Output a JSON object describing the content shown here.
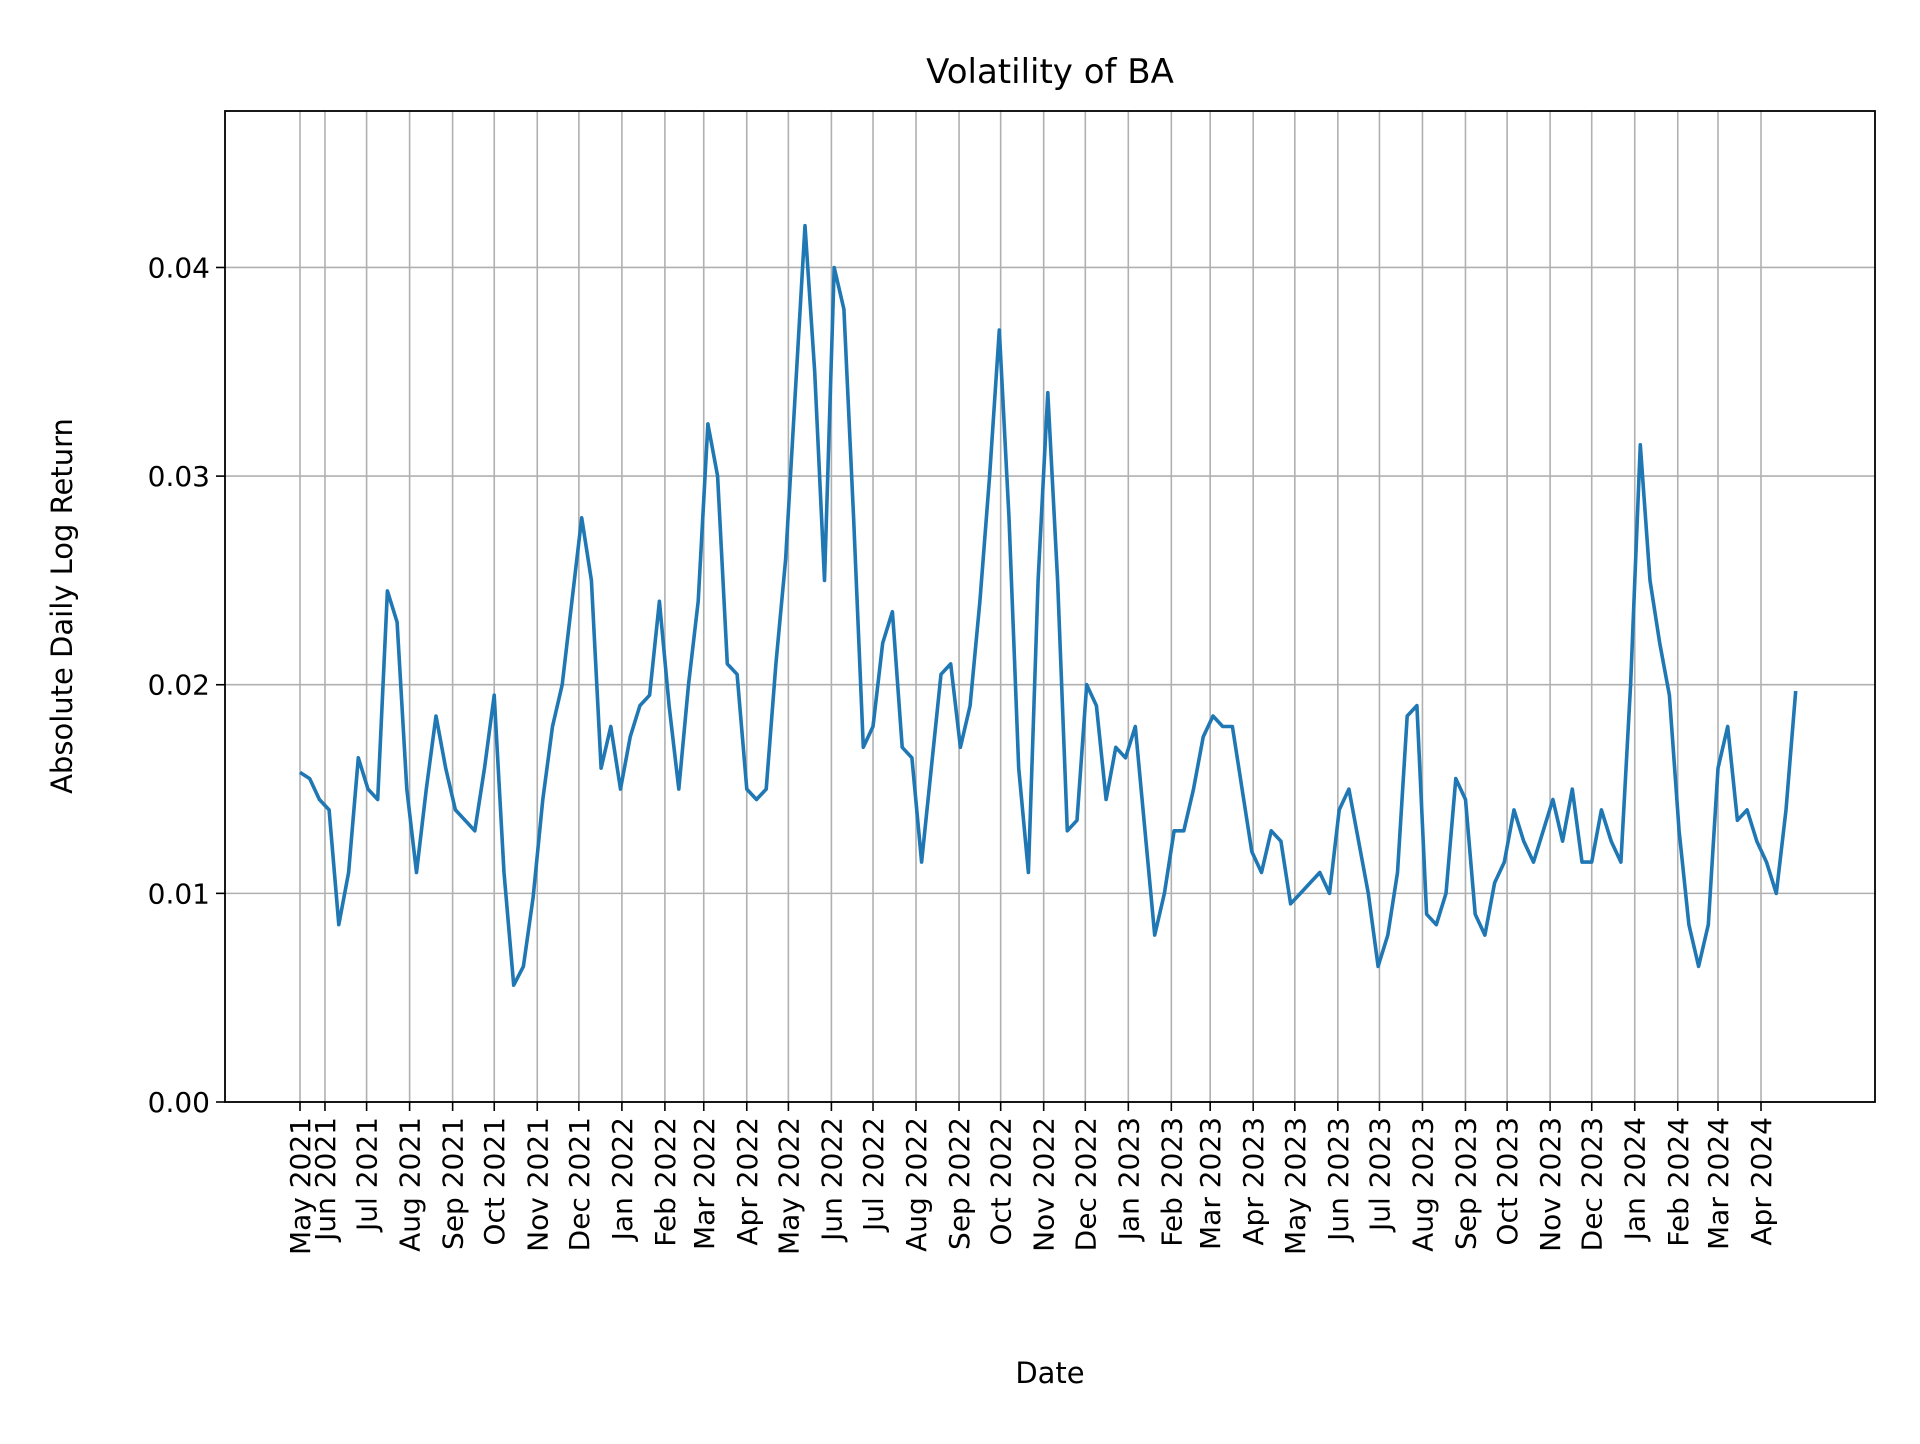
{
  "chart_data": {
    "type": "line",
    "title": "Volatility of BA",
    "xlabel": "Date",
    "ylabel": "Absolute Daily Log Return",
    "ylim": [
      0,
      0.0475
    ],
    "grid": true,
    "line_color": "#1f77b4",
    "y_ticks": [
      0.0,
      0.01,
      0.02,
      0.03,
      0.04
    ],
    "y_tick_labels": [
      "0.00",
      "0.01",
      "0.02",
      "0.03",
      "0.04"
    ],
    "x_ticks": [
      "2021-05-14",
      "2021-06-01",
      "2021-07-01",
      "2021-08-01",
      "2021-09-01",
      "2021-10-01",
      "2021-11-01",
      "2021-12-01",
      "2022-01-01",
      "2022-02-01",
      "2022-03-01",
      "2022-04-01",
      "2022-05-01",
      "2022-06-01",
      "2022-07-01",
      "2022-08-01",
      "2022-09-01",
      "2022-10-01",
      "2022-11-01",
      "2022-12-01",
      "2023-01-01",
      "2023-02-01",
      "2023-03-01",
      "2023-04-01",
      "2023-05-01",
      "2023-06-01",
      "2023-07-01",
      "2023-08-01",
      "2023-09-01",
      "2023-10-01",
      "2023-11-01",
      "2023-12-01",
      "2024-01-01",
      "2024-02-01",
      "2024-03-01",
      "2024-04-01"
    ],
    "x_tick_labels": [
      "May 2021",
      "Jun 2021",
      "Jul 2021",
      "Aug 2021",
      "Sep 2021",
      "Oct 2021",
      "Nov 2021",
      "Dec 2021",
      "Jan 2022",
      "Feb 2022",
      "Mar 2022",
      "Apr 2022",
      "May 2022",
      "Jun 2022",
      "Jul 2022",
      "Aug 2022",
      "Sep 2022",
      "Oct 2022",
      "Nov 2022",
      "Dec 2022",
      "Jan 2023",
      "Feb 2023",
      "Mar 2023",
      "Apr 2023",
      "May 2023",
      "Jun 2023",
      "Jul 2023",
      "Aug 2023",
      "Sep 2023",
      "Oct 2023",
      "Nov 2023",
      "Dec 2023",
      "Jan 2024",
      "Feb 2024",
      "Mar 2024",
      "Apr 2024"
    ],
    "x": [
      "2021-05-14",
      "2021-05-21",
      "2021-05-28",
      "2021-06-04",
      "2021-06-11",
      "2021-06-18",
      "2021-06-25",
      "2021-07-02",
      "2021-07-09",
      "2021-07-16",
      "2021-07-23",
      "2021-07-30",
      "2021-08-06",
      "2021-08-13",
      "2021-08-20",
      "2021-08-27",
      "2021-09-03",
      "2021-09-10",
      "2021-09-17",
      "2021-09-24",
      "2021-10-01",
      "2021-10-08",
      "2021-10-15",
      "2021-10-22",
      "2021-10-29",
      "2021-11-05",
      "2021-11-12",
      "2021-11-19",
      "2021-11-26",
      "2021-12-03",
      "2021-12-10",
      "2021-12-17",
      "2021-12-24",
      "2021-12-31",
      "2022-01-07",
      "2022-01-14",
      "2022-01-21",
      "2022-01-28",
      "2022-02-04",
      "2022-02-11",
      "2022-02-18",
      "2022-02-25",
      "2022-03-04",
      "2022-03-11",
      "2022-03-18",
      "2022-03-25",
      "2022-04-01",
      "2022-04-08",
      "2022-04-15",
      "2022-04-22",
      "2022-04-29",
      "2022-05-06",
      "2022-05-13",
      "2022-05-20",
      "2022-05-27",
      "2022-06-03",
      "2022-06-10",
      "2022-06-17",
      "2022-06-24",
      "2022-07-01",
      "2022-07-08",
      "2022-07-15",
      "2022-07-22",
      "2022-07-29",
      "2022-08-05",
      "2022-08-12",
      "2022-08-19",
      "2022-08-26",
      "2022-09-02",
      "2022-09-09",
      "2022-09-16",
      "2022-09-23",
      "2022-09-30",
      "2022-10-07",
      "2022-10-14",
      "2022-10-21",
      "2022-10-28",
      "2022-11-04",
      "2022-11-11",
      "2022-11-18",
      "2022-11-25",
      "2022-12-02",
      "2022-12-09",
      "2022-12-16",
      "2022-12-23",
      "2022-12-30",
      "2023-01-06",
      "2023-01-13",
      "2023-01-20",
      "2023-01-27",
      "2023-02-03",
      "2023-02-10",
      "2023-02-17",
      "2023-02-24",
      "2023-03-03",
      "2023-03-10",
      "2023-03-17",
      "2023-03-24",
      "2023-03-31",
      "2023-04-07",
      "2023-04-14",
      "2023-04-21",
      "2023-04-28",
      "2023-05-05",
      "2023-05-12",
      "2023-05-19",
      "2023-05-26",
      "2023-06-02",
      "2023-06-09",
      "2023-06-16",
      "2023-06-23",
      "2023-06-30",
      "2023-07-07",
      "2023-07-14",
      "2023-07-21",
      "2023-07-28",
      "2023-08-04",
      "2023-08-11",
      "2023-08-18",
      "2023-08-25",
      "2023-09-01",
      "2023-09-08",
      "2023-09-15",
      "2023-09-22",
      "2023-09-29",
      "2023-10-06",
      "2023-10-13",
      "2023-10-20",
      "2023-10-27",
      "2023-11-03",
      "2023-11-10",
      "2023-11-17",
      "2023-11-24",
      "2023-12-01",
      "2023-12-08",
      "2023-12-15",
      "2023-12-22",
      "2023-12-29",
      "2024-01-05",
      "2024-01-12",
      "2024-01-19",
      "2024-01-26",
      "2024-02-02",
      "2024-02-09",
      "2024-02-16",
      "2024-02-23",
      "2024-03-01",
      "2024-03-08",
      "2024-03-15",
      "2024-03-22",
      "2024-03-29",
      "2024-04-05",
      "2024-04-12",
      "2024-04-19",
      "2024-04-26"
    ],
    "y": [
      0.0158,
      0.0155,
      0.0145,
      0.014,
      0.0085,
      0.011,
      0.0165,
      0.015,
      0.0145,
      0.0245,
      0.023,
      0.015,
      0.011,
      0.015,
      0.0185,
      0.016,
      0.014,
      0.0135,
      0.013,
      0.016,
      0.0195,
      0.011,
      0.0056,
      0.0065,
      0.0098,
      0.0145,
      0.018,
      0.02,
      0.024,
      0.028,
      0.025,
      0.016,
      0.018,
      0.015,
      0.0175,
      0.019,
      0.0195,
      0.024,
      0.019,
      0.015,
      0.02,
      0.024,
      0.0325,
      0.03,
      0.021,
      0.0205,
      0.015,
      0.0145,
      0.015,
      0.021,
      0.026,
      0.034,
      0.042,
      0.035,
      0.025,
      0.04,
      0.038,
      0.028,
      0.017,
      0.018,
      0.022,
      0.0235,
      0.017,
      0.0165,
      0.0115,
      0.016,
      0.0205,
      0.021,
      0.017,
      0.019,
      0.024,
      0.03,
      0.037,
      0.028,
      0.016,
      0.011,
      0.025,
      0.034,
      0.025,
      0.013,
      0.0135,
      0.02,
      0.019,
      0.0145,
      0.017,
      0.0165,
      0.018,
      0.013,
      0.008,
      0.01,
      0.013,
      0.013,
      0.015,
      0.0175,
      0.0185,
      0.018,
      0.018,
      0.015,
      0.012,
      0.011,
      0.013,
      0.0125,
      0.0095,
      0.01,
      0.0105,
      0.011,
      0.01,
      0.014,
      0.015,
      0.0125,
      0.01,
      0.0065,
      0.008,
      0.011,
      0.0185,
      0.019,
      0.009,
      0.0085,
      0.01,
      0.0155,
      0.0145,
      0.009,
      0.008,
      0.0105,
      0.0115,
      0.014,
      0.0125,
      0.0115,
      0.013,
      0.0145,
      0.0125,
      0.015,
      0.0115,
      0.0115,
      0.014,
      0.0125,
      0.0115,
      0.02,
      0.0315,
      0.025,
      0.022,
      0.0195,
      0.013,
      0.0085,
      0.0065,
      0.0085,
      0.016,
      0.018,
      0.0135,
      0.014,
      0.0125,
      0.0115,
      0.01,
      0.014,
      0.0197
    ]
  }
}
